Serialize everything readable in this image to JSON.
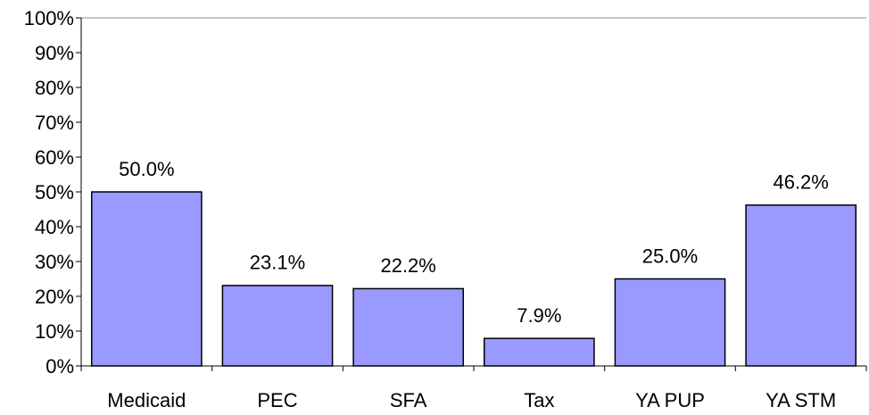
{
  "chart_data": {
    "type": "bar",
    "categories": [
      "Medicaid",
      "PEC",
      "SFA",
      "Tax",
      "YA PUP",
      "YA STM"
    ],
    "values": [
      50.0,
      23.1,
      22.2,
      7.9,
      25.0,
      46.2
    ],
    "value_labels": [
      "50.0%",
      "23.1%",
      "22.2%",
      "7.9%",
      "25.0%",
      "46.2%"
    ],
    "color": "#9999ff",
    "ylim": [
      0,
      100
    ],
    "yticks": [
      {
        "value": 0,
        "label": "0%"
      },
      {
        "value": 10,
        "label": "10%"
      },
      {
        "value": 20,
        "label": "20%"
      },
      {
        "value": 30,
        "label": "30%"
      },
      {
        "value": 40,
        "label": "40%"
      },
      {
        "value": 50,
        "label": "50%"
      },
      {
        "value": 60,
        "label": "60%"
      },
      {
        "value": 70,
        "label": "70%"
      },
      {
        "value": 80,
        "label": "80%"
      },
      {
        "value": 90,
        "label": "90%"
      },
      {
        "value": 100,
        "label": "100%"
      }
    ]
  }
}
